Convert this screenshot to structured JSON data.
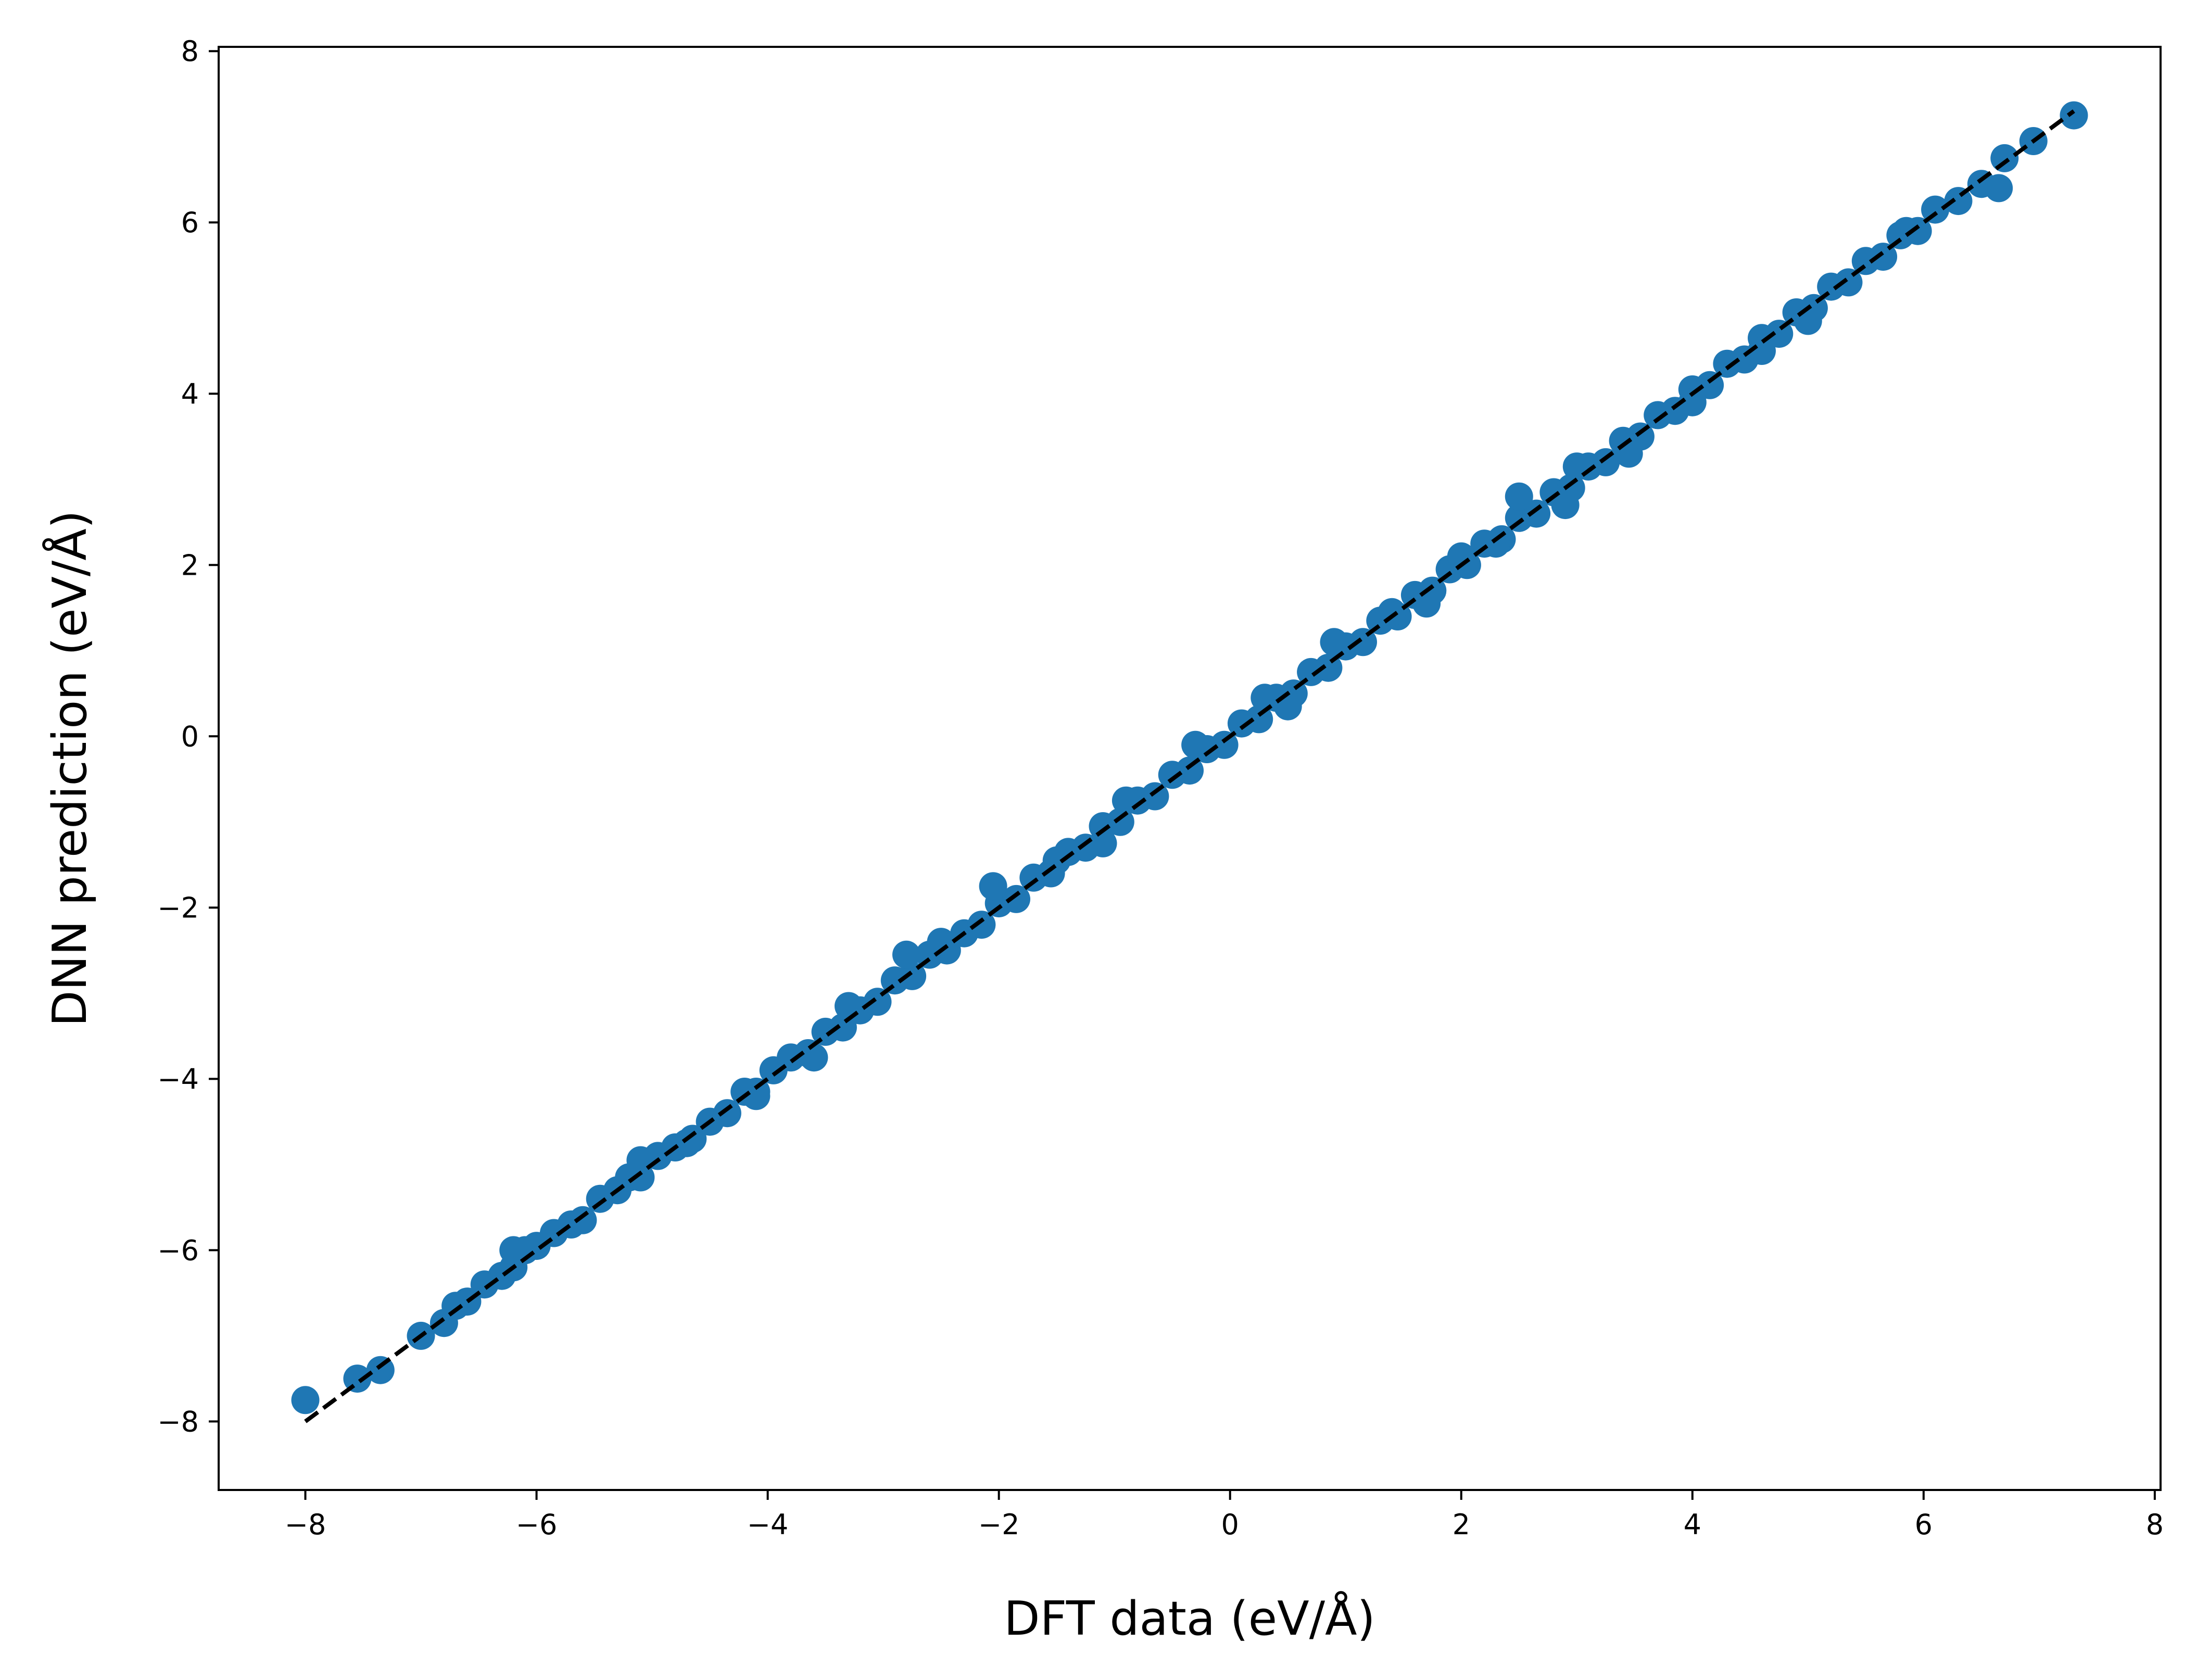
{
  "chart_data": {
    "type": "scatter",
    "title": "",
    "xlabel": "DFT data (eV/Å)",
    "ylabel": "DNN prediction (eV/Å)",
    "xlim": [
      -8.75,
      8.05
    ],
    "ylim": [
      -8.8,
      8.05
    ],
    "x_ticks": [
      -8,
      -6,
      -4,
      -2,
      0,
      2,
      4,
      6,
      8
    ],
    "x_tick_labels": [
      "−8",
      "−6",
      "−4",
      "−2",
      "0",
      "2",
      "4",
      "6",
      "8"
    ],
    "y_ticks": [
      -8,
      -6,
      -4,
      -2,
      0,
      2,
      4,
      6,
      8
    ],
    "y_tick_labels": [
      "−8",
      "−6",
      "−4",
      "−2",
      "0",
      "2",
      "4",
      "6",
      "8"
    ],
    "grid": false,
    "legend": "none",
    "colors": {
      "points": "#1f77b4",
      "reference_line": "#000000",
      "axes": "#000000"
    },
    "reference_line": {
      "style": "dashed",
      "x": [
        -8.0,
        7.3
      ],
      "y": [
        -8.0,
        7.3
      ]
    },
    "points": {
      "x": [
        -8.0,
        -7.55,
        -7.35,
        -7.0,
        -6.8,
        -6.7,
        -6.6,
        -6.45,
        -6.3,
        -6.2,
        -6.1,
        -6.0,
        -5.85,
        -5.7,
        -5.6,
        -5.45,
        -5.3,
        -5.2,
        -5.1,
        -4.95,
        -4.8,
        -4.65,
        -4.5,
        -4.35,
        -4.2,
        -4.1,
        -3.95,
        -3.8,
        -3.65,
        -3.5,
        -3.35,
        -3.2,
        -3.05,
        -2.9,
        -2.75,
        -2.6,
        -2.45,
        -2.3,
        -2.15,
        -2.0,
        -1.85,
        -1.7,
        -1.55,
        -1.4,
        -1.25,
        -1.1,
        -0.95,
        -0.8,
        -0.65,
        -0.5,
        -0.35,
        -0.2,
        -0.05,
        0.1,
        0.25,
        0.4,
        0.55,
        0.7,
        0.85,
        1.0,
        1.15,
        1.3,
        1.45,
        1.6,
        1.75,
        1.9,
        2.05,
        2.2,
        2.35,
        2.5,
        2.65,
        2.8,
        2.95,
        3.1,
        3.25,
        3.4,
        3.55,
        3.7,
        3.85,
        4.0,
        4.15,
        4.3,
        4.45,
        4.6,
        4.75,
        4.9,
        5.05,
        5.2,
        5.35,
        5.5,
        5.65,
        5.8,
        5.95,
        6.1,
        6.3,
        6.5,
        6.65,
        6.7,
        6.95,
        7.3,
        -6.2,
        -5.1,
        -4.7,
        -4.1,
        -3.3,
        -2.8,
        -2.5,
        -2.05,
        -1.5,
        -0.9,
        -0.3,
        0.3,
        0.9,
        1.4,
        2.0,
        2.5,
        3.0,
        3.45,
        4.0,
        4.6,
        5.0,
        5.85,
        2.3,
        2.9,
        0.5,
        -1.1,
        -3.6,
        1.7
      ],
      "y": [
        -7.75,
        -7.5,
        -7.4,
        -7.0,
        -6.85,
        -6.65,
        -6.6,
        -6.4,
        -6.3,
        -6.2,
        -6.0,
        -5.95,
        -5.8,
        -5.7,
        -5.65,
        -5.4,
        -5.3,
        -5.15,
        -5.15,
        -4.9,
        -4.8,
        -4.7,
        -4.5,
        -4.4,
        -4.15,
        -4.15,
        -3.9,
        -3.75,
        -3.7,
        -3.45,
        -3.4,
        -3.2,
        -3.1,
        -2.85,
        -2.8,
        -2.55,
        -2.5,
        -2.3,
        -2.2,
        -1.95,
        -1.9,
        -1.65,
        -1.6,
        -1.35,
        -1.3,
        -1.05,
        -1.0,
        -0.75,
        -0.7,
        -0.45,
        -0.4,
        -0.15,
        -0.1,
        0.15,
        0.2,
        0.45,
        0.5,
        0.75,
        0.8,
        1.05,
        1.1,
        1.35,
        1.4,
        1.65,
        1.7,
        1.95,
        2.0,
        2.25,
        2.3,
        2.55,
        2.6,
        2.85,
        2.9,
        3.15,
        3.2,
        3.45,
        3.5,
        3.75,
        3.8,
        4.05,
        4.1,
        4.35,
        4.4,
        4.65,
        4.7,
        4.95,
        5.0,
        5.25,
        5.3,
        5.55,
        5.6,
        5.85,
        5.9,
        6.15,
        6.25,
        6.45,
        6.4,
        6.75,
        6.95,
        7.25,
        -6.0,
        -4.95,
        -4.75,
        -4.2,
        -3.15,
        -2.55,
        -2.4,
        -1.75,
        -1.45,
        -0.75,
        -0.1,
        0.45,
        1.1,
        1.45,
        2.1,
        2.8,
        3.15,
        3.3,
        3.9,
        4.5,
        4.85,
        5.9,
        2.25,
        2.7,
        0.35,
        -1.25,
        -3.75,
        1.55
      ]
    }
  }
}
